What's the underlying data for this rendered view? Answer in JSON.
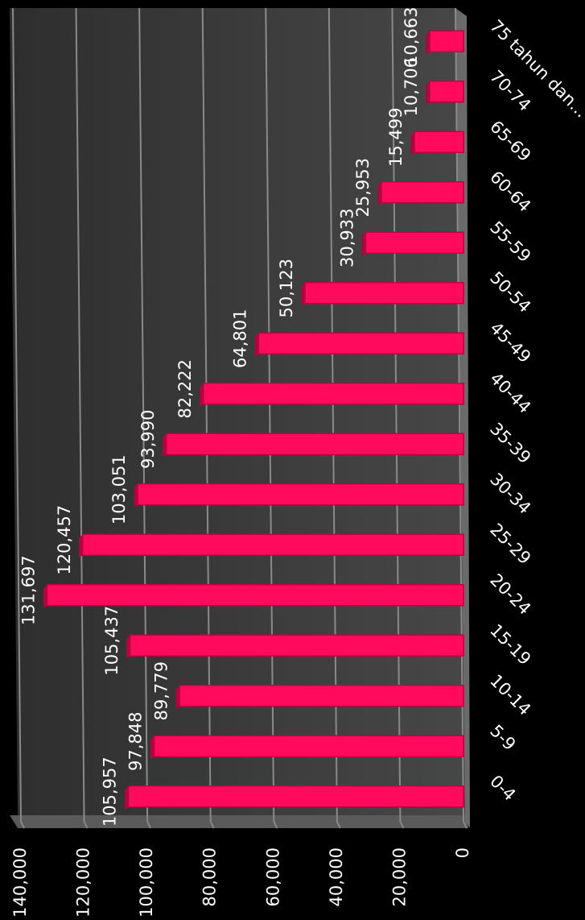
{
  "chart_data": {
    "type": "bar",
    "orientation": "horizontal",
    "categories": [
      "0-4",
      "5-9",
      "10-14",
      "15-19",
      "20-24",
      "25-29",
      "30-34",
      "35-39",
      "40-44",
      "45-49",
      "50-54",
      "55-59",
      "60-64",
      "65-69",
      "70-74",
      "75 tahun dan..."
    ],
    "values": [
      105957,
      97848,
      89779,
      105437,
      131697,
      120457,
      103051,
      93990,
      82222,
      64801,
      50123,
      30933,
      25953,
      15499,
      10706,
      10663
    ],
    "value_labels": [
      "105,957",
      "97,848",
      "89,779",
      "105,437",
      "131,697",
      "120,457",
      "103,051",
      "93,990",
      "82,222",
      "64,801",
      "50,123",
      "30,933",
      "25,953",
      "15,499",
      "10,706",
      "10,663"
    ],
    "color": "#ff0a5c",
    "ylim": [
      0,
      140000
    ],
    "yticks": [
      0,
      {
        "value": 20000,
        "label": "20,000"
      },
      {
        "value": 40000,
        "label": "40,000"
      },
      {
        "value": 60000,
        "label": "60,000"
      },
      {
        "value": 80000,
        "label": "80,000"
      },
      {
        "value": 100000,
        "label": "100,000"
      },
      {
        "value": 120000,
        "label": "120,000"
      },
      {
        "value": 140000,
        "label": "140,000"
      }
    ],
    "grid": true
  }
}
